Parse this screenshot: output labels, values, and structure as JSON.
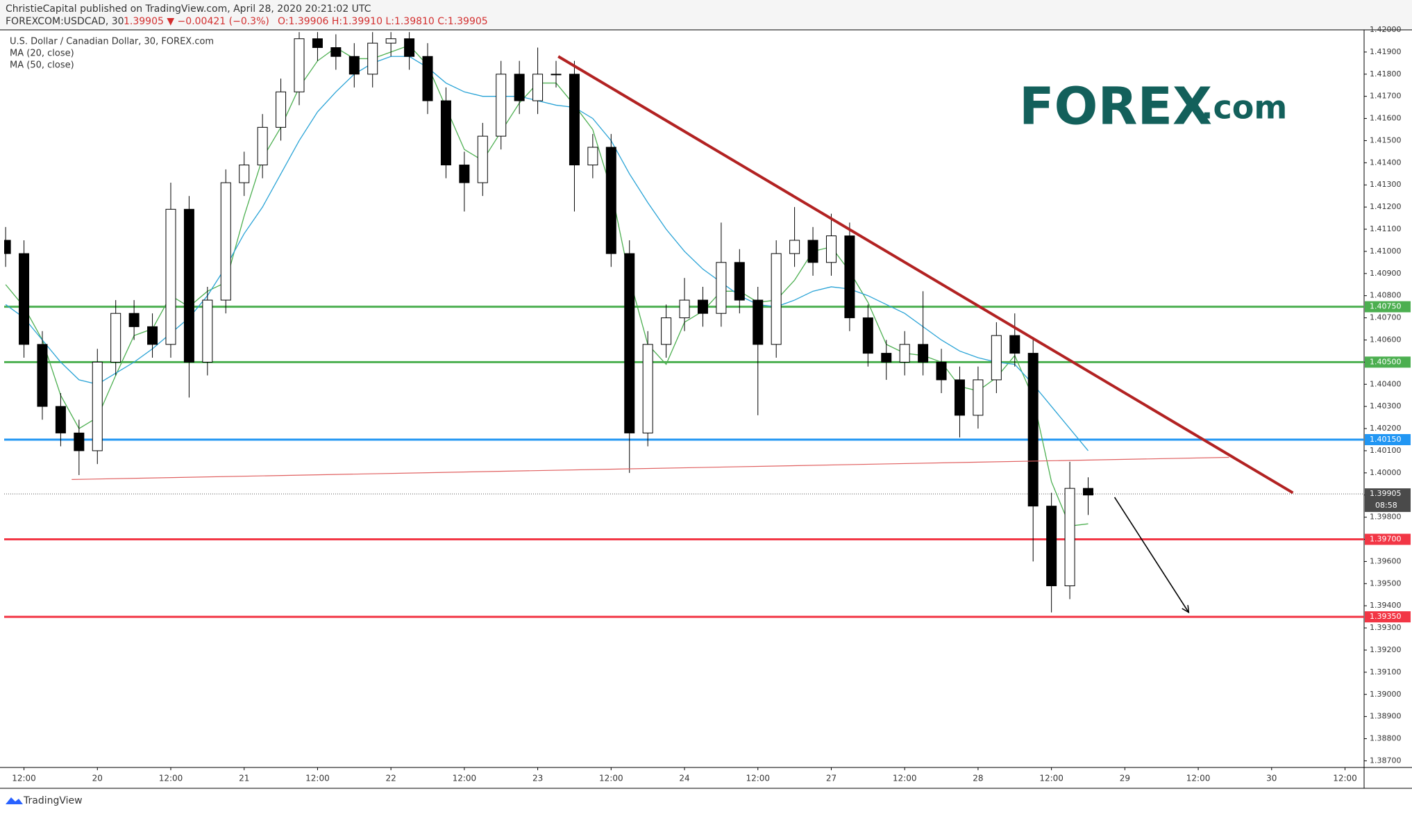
{
  "header": {
    "published": "ChristieCapital published on TradingView.com, April 28, 2020 20:21:02 UTC",
    "symbol": "FOREXCOM:USDCAD, 30",
    "change": "1.39905 ▼ −0.00421 (−0.3%)",
    "ohlc": "O:1.39906 H:1.39910 L:1.39810 C:1.39905"
  },
  "logo": {
    "brand": "FOREX",
    "suffix": ".com"
  },
  "footer": {
    "brand": "TradingView"
  },
  "chart_data": {
    "type": "candlestick",
    "title": "U.S. Dollar / Canadian Dollar, 30, FOREX.com",
    "x": [
      -0.25,
      0,
      0.25,
      0.5,
      0.75,
      1,
      1.25,
      1.5,
      1.75,
      2,
      2.25,
      2.5,
      2.75,
      3,
      3.25,
      3.5,
      3.75,
      4,
      4.25,
      4.5,
      4.75,
      5,
      5.25,
      5.5,
      5.75,
      6,
      6.25,
      6.5,
      6.75,
      7,
      7.25,
      7.5,
      7.75,
      8,
      8.25,
      8.5,
      8.75,
      9,
      9.25,
      9.5,
      9.75,
      10,
      10.25,
      10.5,
      10.75,
      11,
      11.25,
      11.5,
      11.75,
      12,
      12.25,
      12.5,
      12.75,
      13,
      13.25,
      13.5,
      13.75,
      14,
      14.25,
      14.5
    ],
    "ohlc": [
      [
        1.4105,
        1.4111,
        1.4093,
        1.4099
      ],
      [
        1.4099,
        1.4105,
        1.4052,
        1.4058
      ],
      [
        1.4058,
        1.4064,
        1.4024,
        1.403
      ],
      [
        1.403,
        1.4036,
        1.4012,
        1.4018
      ],
      [
        1.4018,
        1.4024,
        1.3999,
        1.401
      ],
      [
        1.401,
        1.4056,
        1.4004,
        1.405
      ],
      [
        1.405,
        1.4078,
        1.4044,
        1.4072
      ],
      [
        1.4072,
        1.4078,
        1.406,
        1.4066
      ],
      [
        1.4066,
        1.4072,
        1.4052,
        1.4058
      ],
      [
        1.4058,
        1.4131,
        1.4052,
        1.4119
      ],
      [
        1.4119,
        1.4125,
        1.4034,
        1.405
      ],
      [
        1.405,
        1.4084,
        1.4044,
        1.4078
      ],
      [
        1.4078,
        1.4137,
        1.4072,
        1.4131
      ],
      [
        1.4131,
        1.4145,
        1.4125,
        1.4139
      ],
      [
        1.4139,
        1.4162,
        1.4133,
        1.4156
      ],
      [
        1.4156,
        1.4178,
        1.415,
        1.4172
      ],
      [
        1.4172,
        1.4199,
        1.4166,
        1.4196
      ],
      [
        1.4196,
        1.4199,
        1.4186,
        1.4192
      ],
      [
        1.4192,
        1.4198,
        1.4182,
        1.4188
      ],
      [
        1.4188,
        1.4194,
        1.4174,
        1.418
      ],
      [
        1.418,
        1.4199,
        1.4174,
        1.4194
      ],
      [
        1.4194,
        1.4199,
        1.4188,
        1.4196
      ],
      [
        1.4196,
        1.4199,
        1.4182,
        1.4188
      ],
      [
        1.4188,
        1.4194,
        1.4162,
        1.4168
      ],
      [
        1.4168,
        1.4174,
        1.4133,
        1.4139
      ],
      [
        1.4139,
        1.4145,
        1.4118,
        1.4131
      ],
      [
        1.4131,
        1.4158,
        1.4125,
        1.4152
      ],
      [
        1.4152,
        1.4186,
        1.4146,
        1.418
      ],
      [
        1.418,
        1.4186,
        1.4162,
        1.4168
      ],
      [
        1.4168,
        1.4192,
        1.4162,
        1.418
      ],
      [
        1.418,
        1.4186,
        1.4174,
        1.418
      ],
      [
        1.418,
        1.4186,
        1.4118,
        1.4139
      ],
      [
        1.4139,
        1.4153,
        1.4133,
        1.4147
      ],
      [
        1.4147,
        1.4153,
        1.4093,
        1.4099
      ],
      [
        1.4099,
        1.4105,
        1.4,
        1.4018
      ],
      [
        1.4018,
        1.4064,
        1.4012,
        1.4058
      ],
      [
        1.4058,
        1.4076,
        1.4052,
        1.407
      ],
      [
        1.407,
        1.4088,
        1.4064,
        1.4078
      ],
      [
        1.4078,
        1.4084,
        1.4066,
        1.4072
      ],
      [
        1.4072,
        1.4113,
        1.4066,
        1.4095
      ],
      [
        1.4095,
        1.4101,
        1.4072,
        1.4078
      ],
      [
        1.4078,
        1.4084,
        1.4026,
        1.4058
      ],
      [
        1.4058,
        1.4105,
        1.4052,
        1.4099
      ],
      [
        1.4099,
        1.412,
        1.4093,
        1.4105
      ],
      [
        1.4105,
        1.4111,
        1.4089,
        1.4095
      ],
      [
        1.4095,
        1.4117,
        1.4089,
        1.4107
      ],
      [
        1.4107,
        1.4113,
        1.4064,
        1.407
      ],
      [
        1.407,
        1.4076,
        1.4048,
        1.4054
      ],
      [
        1.4054,
        1.406,
        1.4042,
        1.405
      ],
      [
        1.405,
        1.4064,
        1.4044,
        1.4058
      ],
      [
        1.4058,
        1.4082,
        1.4044,
        1.405
      ],
      [
        1.405,
        1.4056,
        1.4036,
        1.4042
      ],
      [
        1.4042,
        1.4048,
        1.4016,
        1.4026
      ],
      [
        1.4026,
        1.4048,
        1.402,
        1.4042
      ],
      [
        1.4042,
        1.4068,
        1.4036,
        1.4062
      ],
      [
        1.4062,
        1.4072,
        1.4048,
        1.4054
      ],
      [
        1.4054,
        1.406,
        1.396,
        1.3985
      ],
      [
        1.3985,
        1.3991,
        1.3937,
        1.3949
      ],
      [
        1.3949,
        1.4005,
        1.3943,
        1.3993
      ],
      [
        1.3993,
        1.3998,
        1.3981,
        1.399
      ]
    ],
    "series": [
      {
        "name": "MA (20, close)",
        "color": "#4caf50",
        "values": [
          1.4085,
          1.4075,
          1.406,
          1.4035,
          1.402,
          1.4025,
          1.4044,
          1.4062,
          1.4065,
          1.408,
          1.4075,
          1.4082,
          1.4086,
          1.4116,
          1.4142,
          1.4156,
          1.4174,
          1.4186,
          1.4192,
          1.4187,
          1.4187,
          1.419,
          1.4193,
          1.4184,
          1.4165,
          1.4146,
          1.4141,
          1.4154,
          1.4167,
          1.4176,
          1.4176,
          1.4166,
          1.4155,
          1.4128,
          1.4088,
          1.4058,
          1.4049,
          1.4068,
          1.4073,
          1.4082,
          1.4082,
          1.4077,
          1.4078,
          1.4087,
          1.41,
          1.4102,
          1.4091,
          1.4077,
          1.4058,
          1.4054,
          1.4053,
          1.405,
          1.4039,
          1.4037,
          1.4043,
          1.4053,
          1.4034,
          1.3996,
          1.3976,
          1.3977
        ]
      },
      {
        "name": "MA (50, close)",
        "color": "#29a3d6",
        "values": [
          1.4076,
          1.407,
          1.406,
          1.405,
          1.4042,
          1.404,
          1.4045,
          1.405,
          1.4056,
          1.4063,
          1.407,
          1.408,
          1.4093,
          1.4108,
          1.412,
          1.4135,
          1.415,
          1.4163,
          1.4172,
          1.418,
          1.4185,
          1.4188,
          1.4188,
          1.4183,
          1.4176,
          1.4172,
          1.417,
          1.417,
          1.417,
          1.4168,
          1.4166,
          1.4165,
          1.416,
          1.415,
          1.4135,
          1.4122,
          1.411,
          1.41,
          1.4092,
          1.4086,
          1.408,
          1.4076,
          1.4075,
          1.4078,
          1.4082,
          1.4084,
          1.4083,
          1.408,
          1.4076,
          1.4072,
          1.4066,
          1.406,
          1.4055,
          1.4052,
          1.405,
          1.4049,
          1.404,
          1.403,
          1.402,
          1.401
        ]
      }
    ],
    "up_color": "#ffffff",
    "down_color": "#000000",
    "levels": [
      {
        "value": 1.4075,
        "label": "1.40750",
        "color": "#4caf50"
      },
      {
        "value": 1.405,
        "label": "1.40500",
        "color": "#4caf50"
      },
      {
        "value": 1.4015,
        "label": "1.40150",
        "color": "#2196f3"
      },
      {
        "value": 1.397,
        "label": "1.39700",
        "color": "#f23645"
      },
      {
        "value": 1.3935,
        "label": "1.39350",
        "color": "#f23645"
      }
    ],
    "last_price": {
      "value": 1.39905,
      "label": "1.39905",
      "countdown": "08:58"
    },
    "trendlines": [
      {
        "style": "thick",
        "color": "#b22222",
        "x": [
          7.28,
          17.29
        ],
        "y": [
          1.4188,
          1.3991
        ]
      },
      {
        "style": "thin",
        "color": "#e06060",
        "x": [
          0.65,
          16.42
        ],
        "y": [
          1.3997,
          1.4007
        ]
      },
      {
        "style": "arrow",
        "color": "#000000",
        "x": [
          14.86,
          15.87
        ],
        "y": [
          1.3989,
          1.3937
        ]
      }
    ],
    "xlim": [
      -0.27,
      18.26
    ],
    "xticks": [
      {
        "value": 0,
        "label": "12:00"
      },
      {
        "value": 1,
        "label": "20"
      },
      {
        "value": 2,
        "label": "12:00"
      },
      {
        "value": 3,
        "label": "21"
      },
      {
        "value": 4,
        "label": "12:00"
      },
      {
        "value": 5,
        "label": "22"
      },
      {
        "value": 6,
        "label": "12:00"
      },
      {
        "value": 7,
        "label": "23"
      },
      {
        "value": 8,
        "label": "12:00"
      },
      {
        "value": 9,
        "label": "24"
      },
      {
        "value": 10,
        "label": "12:00"
      },
      {
        "value": 11,
        "label": "27"
      },
      {
        "value": 12,
        "label": "12:00"
      },
      {
        "value": 13,
        "label": "28"
      },
      {
        "value": 14,
        "label": "12:00"
      },
      {
        "value": 15,
        "label": "29"
      },
      {
        "value": 16,
        "label": "12:00"
      },
      {
        "value": 17,
        "label": "30"
      },
      {
        "value": 18,
        "label": "12:00"
      }
    ],
    "ylim": [
      1.3867,
      1.42
    ],
    "yticks": [
      {
        "value": 1.42,
        "label": "1.42000"
      },
      {
        "value": 1.419,
        "label": "1.41900"
      },
      {
        "value": 1.418,
        "label": "1.41800"
      },
      {
        "value": 1.417,
        "label": "1.41700"
      },
      {
        "value": 1.416,
        "label": "1.41600"
      },
      {
        "value": 1.415,
        "label": "1.41500"
      },
      {
        "value": 1.414,
        "label": "1.41400"
      },
      {
        "value": 1.413,
        "label": "1.41300"
      },
      {
        "value": 1.412,
        "label": "1.41200"
      },
      {
        "value": 1.411,
        "label": "1.41100"
      },
      {
        "value": 1.41,
        "label": "1.41000"
      },
      {
        "value": 1.409,
        "label": "1.40900"
      },
      {
        "value": 1.408,
        "label": "1.40800"
      },
      {
        "value": 1.407,
        "label": "1.40700"
      },
      {
        "value": 1.406,
        "label": "1.40600"
      },
      {
        "value": 1.405,
        "label": "1.40500"
      },
      {
        "value": 1.404,
        "label": "1.40400"
      },
      {
        "value": 1.403,
        "label": "1.40300"
      },
      {
        "value": 1.402,
        "label": "1.40200"
      },
      {
        "value": 1.401,
        "label": "1.40100"
      },
      {
        "value": 1.4,
        "label": "1.40000"
      },
      {
        "value": 1.399,
        "label": "1.39900"
      },
      {
        "value": 1.398,
        "label": "1.39800"
      },
      {
        "value": 1.397,
        "label": "1.39700"
      },
      {
        "value": 1.396,
        "label": "1.39600"
      },
      {
        "value": 1.395,
        "label": "1.39500"
      },
      {
        "value": 1.394,
        "label": "1.39400"
      },
      {
        "value": 1.393,
        "label": "1.39300"
      },
      {
        "value": 1.392,
        "label": "1.39200"
      },
      {
        "value": 1.391,
        "label": "1.39100"
      },
      {
        "value": 1.39,
        "label": "1.39000"
      },
      {
        "value": 1.389,
        "label": "1.38900"
      },
      {
        "value": 1.388,
        "label": "1.38800"
      },
      {
        "value": 1.387,
        "label": "1.38700"
      }
    ]
  }
}
